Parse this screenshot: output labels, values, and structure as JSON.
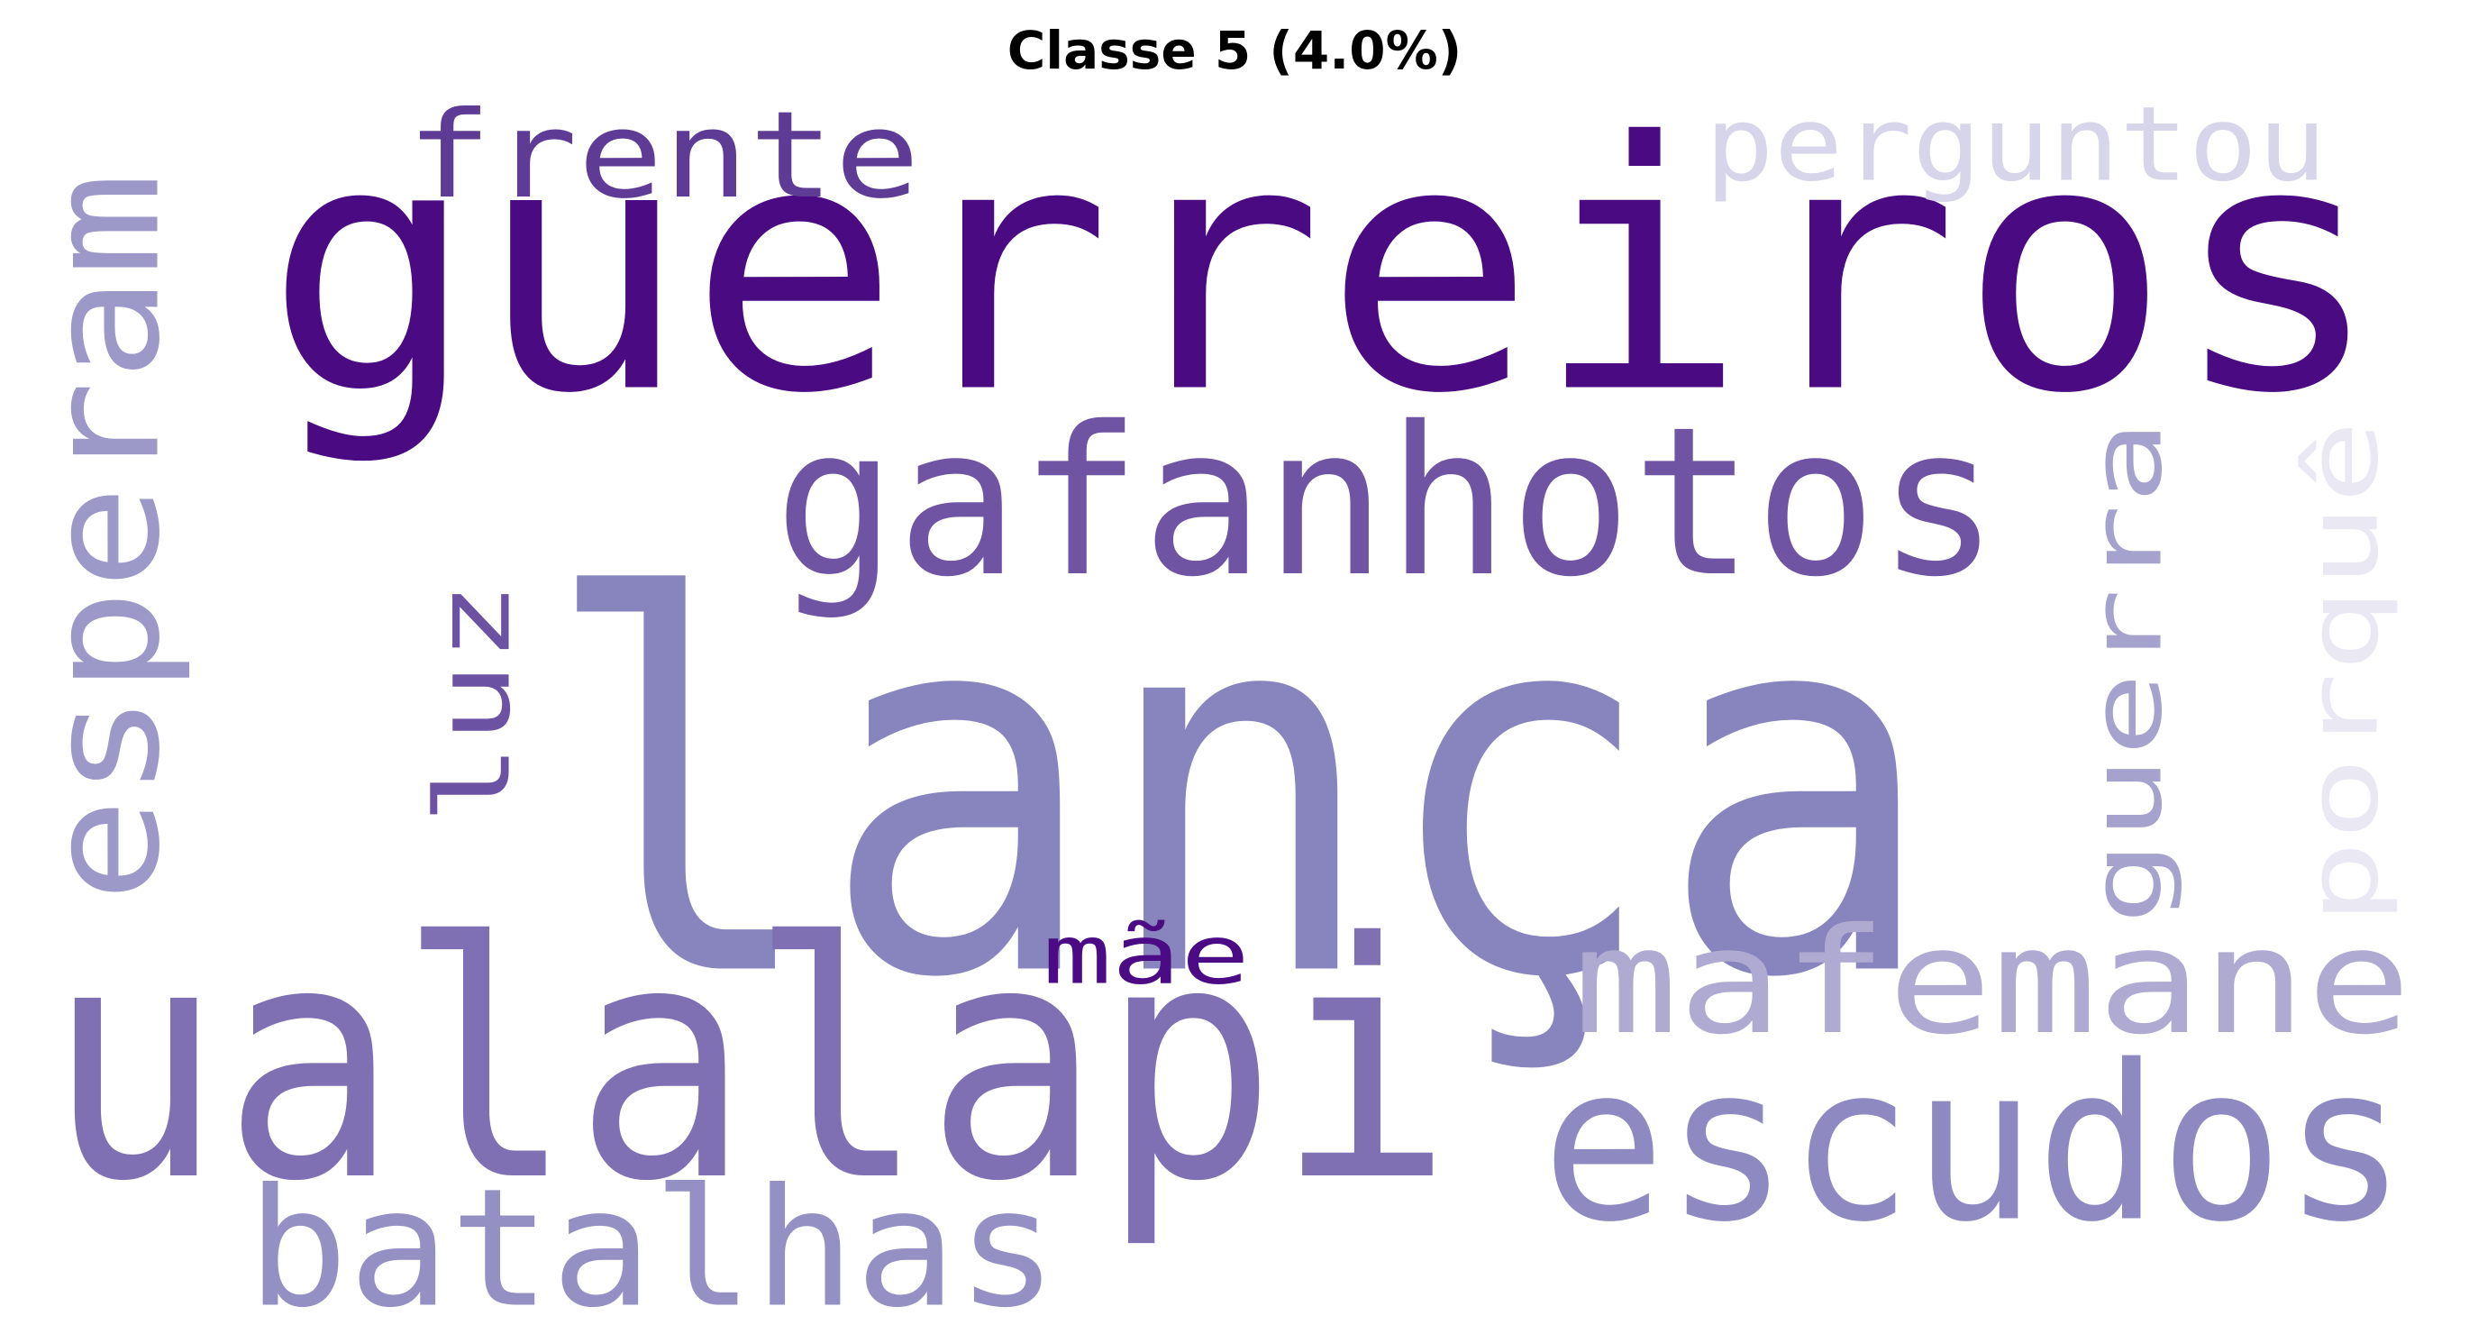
{
  "title": "Classe 5 (4.0%)",
  "words": [
    {
      "id": "guerreiros",
      "text": "guerreiros",
      "color": "#4a0a82"
    },
    {
      "id": "lanca",
      "text": "lança",
      "color": "#8884bd"
    },
    {
      "id": "ualalapi",
      "text": "ualalapi",
      "color": "#7e70b2"
    },
    {
      "id": "gafanhotos",
      "text": "gafanhotos",
      "color": "#6e54a2"
    },
    {
      "id": "escudos",
      "text": "escudos",
      "color": "#8e89c0"
    },
    {
      "id": "mafemane",
      "text": "mafemane",
      "color": "#aeaad2"
    },
    {
      "id": "batalhas",
      "text": "batalhas",
      "color": "#9490c4"
    },
    {
      "id": "esperam",
      "text": "esperam",
      "color": "#9c98c8"
    },
    {
      "id": "frente",
      "text": "frente",
      "color": "#5e3c96"
    },
    {
      "id": "perguntou",
      "text": "perguntou",
      "color": "#d6d5e9"
    },
    {
      "id": "guerra",
      "text": "guerra",
      "color": "#a6a2ce"
    },
    {
      "id": "porque",
      "text": "porquê",
      "color": "#e9e8f3"
    },
    {
      "id": "luz",
      "text": "luz",
      "color": "#6c52a2"
    },
    {
      "id": "mae",
      "text": "mãe",
      "color": "#4b0b84"
    }
  ]
}
